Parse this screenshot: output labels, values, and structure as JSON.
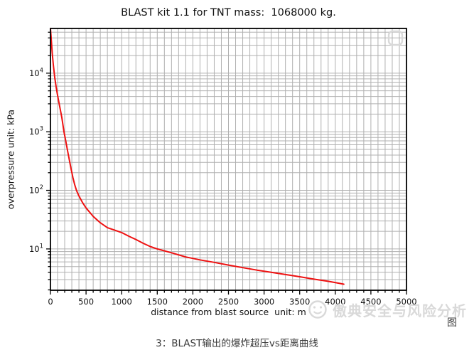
{
  "figure": {
    "title": "BLAST kit 1.1 for TNT mass:  1068000 kg.",
    "x_axis_label": "distance from blast source  unit: m",
    "y_axis_label": "overpressure unit: kPa"
  },
  "watermark": {
    "brand_text": "傲典安全与风险分析",
    "logo_icon": "smiley-face-logo",
    "corner_icon": "rounded-square-logo",
    "color": "#d9d9d9"
  },
  "caption": {
    "prefix_char": "图",
    "text": "3：BLAST输出的爆炸超压vs距离曲线"
  },
  "chart_data": {
    "type": "line",
    "title": "BLAST kit 1.1 for TNT mass:  1068000 kg.",
    "xlabel": "distance from blast source  unit: m",
    "ylabel": "overpressure unit: kPa",
    "x_axis": {
      "scale": "linear",
      "min": 0,
      "max": 5000,
      "major_tick_step": 500,
      "minor_tick_step": 100,
      "major_tick_labels": [
        "0",
        "500",
        "1000",
        "1500",
        "2000",
        "2500",
        "3000",
        "3500",
        "4000",
        "4500",
        "5000"
      ]
    },
    "y_axis": {
      "scale": "log",
      "min": 1.97,
      "max": 58000,
      "major_tick_exponents": [
        1,
        2,
        3,
        4
      ]
    },
    "grid": {
      "which": "both",
      "color": "#b0b0b0"
    },
    "legend": "none",
    "line": {
      "name": "blast overpressure vs distance",
      "color": "#ee1111",
      "width": 2
    },
    "points": [
      [
        0,
        58000
      ],
      [
        10,
        40000
      ],
      [
        25,
        22000
      ],
      [
        40,
        14000
      ],
      [
        60,
        8500
      ],
      [
        80,
        5800
      ],
      [
        100,
        4200
      ],
      [
        130,
        2700
      ],
      [
        160,
        1750
      ],
      [
        190,
        1000
      ],
      [
        215,
        700
      ],
      [
        240,
        480
      ],
      [
        265,
        330
      ],
      [
        290,
        230
      ],
      [
        315,
        165
      ],
      [
        340,
        125
      ],
      [
        365,
        100
      ],
      [
        400,
        80
      ],
      [
        450,
        62
      ],
      [
        500,
        50
      ],
      [
        600,
        36
      ],
      [
        700,
        28
      ],
      [
        800,
        23
      ],
      [
        900,
        21
      ],
      [
        1000,
        19
      ],
      [
        1100,
        16.5
      ],
      [
        1200,
        14.5
      ],
      [
        1300,
        12.5
      ],
      [
        1400,
        11
      ],
      [
        1500,
        10
      ],
      [
        1700,
        8.6
      ],
      [
        1900,
        7.3
      ],
      [
        2100,
        6.5
      ],
      [
        2300,
        5.9
      ],
      [
        2500,
        5.3
      ],
      [
        2700,
        4.8
      ],
      [
        2900,
        4.35
      ],
      [
        3100,
        4.0
      ],
      [
        3300,
        3.65
      ],
      [
        3500,
        3.35
      ],
      [
        3700,
        3.05
      ],
      [
        3900,
        2.8
      ],
      [
        4050,
        2.6
      ],
      [
        4120,
        2.5
      ]
    ]
  }
}
